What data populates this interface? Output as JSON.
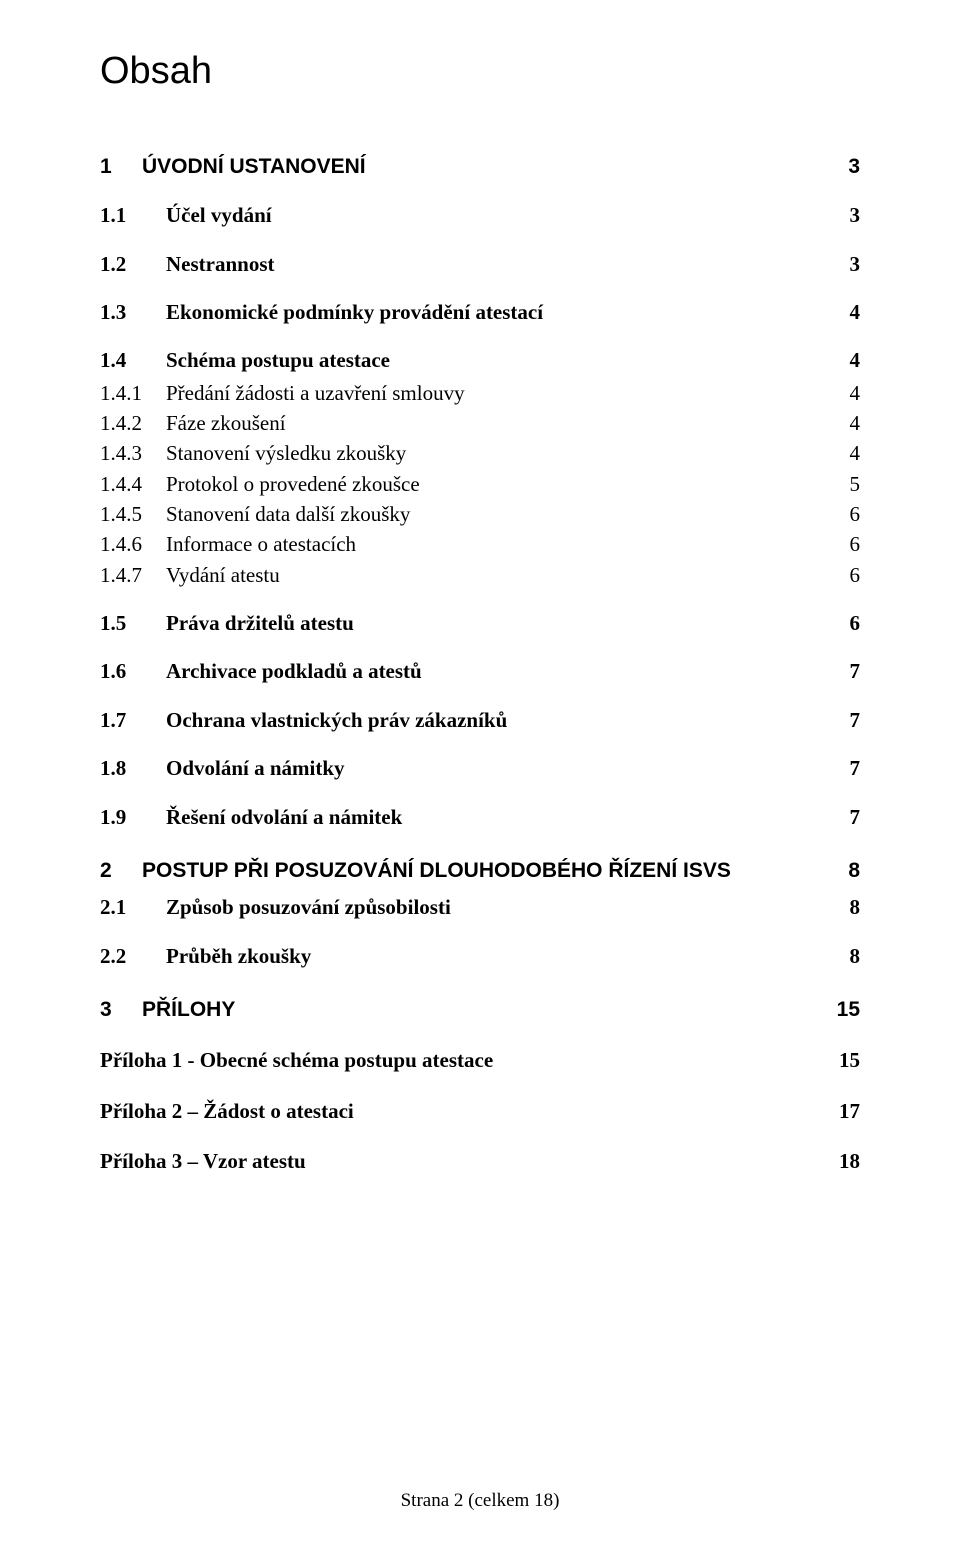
{
  "title": "Obsah",
  "entries": [
    {
      "level": "lvl1",
      "num": "1",
      "text": "ÚVODNÍ USTANOVENÍ",
      "page": "3"
    },
    {
      "level": "lvl2",
      "num": "1.1",
      "text": "Účel vydání",
      "page": "3"
    },
    {
      "level": "lvl2",
      "num": "1.2",
      "text": "Nestrannost",
      "page": "3"
    },
    {
      "level": "lvl2",
      "num": "1.3",
      "text": "Ekonomické podmínky provádění atestací",
      "page": "4"
    },
    {
      "level": "lvl2",
      "num": "1.4",
      "text": "Schéma postupu atestace",
      "page": "4"
    },
    {
      "level": "lvl3",
      "num": "1.4.1",
      "text": "Předání žádosti a uzavření smlouvy",
      "page": "4"
    },
    {
      "level": "lvl3",
      "num": "1.4.2",
      "text": "Fáze zkoušení",
      "page": "4"
    },
    {
      "level": "lvl3",
      "num": "1.4.3",
      "text": "Stanovení výsledku zkoušky",
      "page": "4"
    },
    {
      "level": "lvl3",
      "num": "1.4.4",
      "text": "Protokol o provedené zkoušce",
      "page": "5"
    },
    {
      "level": "lvl3",
      "num": "1.4.5",
      "text": "Stanovení data další zkoušky",
      "page": "6"
    },
    {
      "level": "lvl3",
      "num": "1.4.6",
      "text": "Informace o atestacích",
      "page": "6"
    },
    {
      "level": "lvl3",
      "num": "1.4.7",
      "text": "Vydání atestu",
      "page": "6"
    },
    {
      "level": "lvl2",
      "num": "1.5",
      "text": "Práva držitelů atestu",
      "page": "6"
    },
    {
      "level": "lvl2",
      "num": "1.6",
      "text": "Archivace podkladů a atestů",
      "page": "7"
    },
    {
      "level": "lvl2",
      "num": "1.7",
      "text": "Ochrana vlastnických práv zákazníků",
      "page": "7"
    },
    {
      "level": "lvl2",
      "num": "1.8",
      "text": "Odvolání a námitky",
      "page": "7"
    },
    {
      "level": "lvl2",
      "num": "1.9",
      "text": "Řešení odvolání a námitek",
      "page": "7"
    },
    {
      "level": "lvl1",
      "num": "2",
      "text": "POSTUP PŘI POSUZOVÁNÍ DLOUHODOBÉHO ŘÍZENÍ ISVS",
      "page": "8"
    },
    {
      "level": "lvl2",
      "num": "2.1",
      "text": "Způsob posuzování způsobilosti",
      "page": "8",
      "tight": true
    },
    {
      "level": "lvl2",
      "num": "2.2",
      "text": "Průběh zkoušky",
      "page": "8"
    },
    {
      "level": "lvl1",
      "num": "3",
      "text": "PŘÍLOHY",
      "page": "15"
    },
    {
      "level": "appx",
      "num": "",
      "text": "Příloha 1 - Obecné schéma postupu atestace",
      "page": "15"
    },
    {
      "level": "appx",
      "num": "",
      "text": "Příloha 2 – Žádost o atestaci",
      "page": "17"
    },
    {
      "level": "appx",
      "num": "",
      "text": "Příloha 3 – Vzor atestu",
      "page": "18"
    }
  ],
  "footer": "Strana 2 (celkem 18)"
}
